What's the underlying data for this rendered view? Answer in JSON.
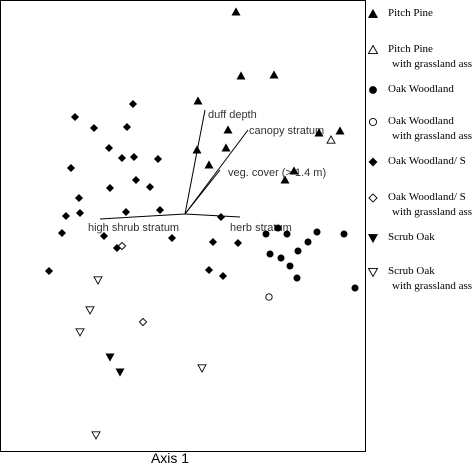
{
  "chart_data": {
    "type": "scatter",
    "title": "",
    "xlabel": "Axis 1",
    "ylabel": "",
    "grid": false,
    "legend_placement": "right",
    "series": [
      {
        "name": "Pitch Pine",
        "marker": "triangle-up",
        "filled": true,
        "points": [
          [
            236,
            12
          ],
          [
            198,
            101
          ],
          [
            241,
            76
          ],
          [
            274,
            75
          ],
          [
            228,
            130
          ],
          [
            319,
            133
          ],
          [
            340,
            131
          ],
          [
            197,
            150
          ],
          [
            209,
            165
          ],
          [
            285,
            180
          ],
          [
            294,
            171
          ],
          [
            226,
            148
          ]
        ]
      },
      {
        "name": "Pitch Pine with grassland ass",
        "marker": "triangle-up",
        "filled": false,
        "points": [
          [
            331,
            140
          ]
        ]
      },
      {
        "name": "Oak Woodland",
        "marker": "circle",
        "filled": true,
        "points": [
          [
            266,
            234
          ],
          [
            278,
            228
          ],
          [
            287,
            234
          ],
          [
            298,
            251
          ],
          [
            317,
            232
          ],
          [
            344,
            234
          ],
          [
            270,
            254
          ],
          [
            281,
            258
          ],
          [
            290,
            266
          ],
          [
            297,
            278
          ],
          [
            355,
            288
          ],
          [
            308,
            242
          ]
        ]
      },
      {
        "name": "Oak Woodland with grassland ass",
        "marker": "circle",
        "filled": false,
        "points": [
          [
            269,
            297
          ]
        ]
      },
      {
        "name": "Oak Woodland/ S",
        "marker": "diamond",
        "filled": true,
        "points": [
          [
            75,
            117
          ],
          [
            94,
            128
          ],
          [
            133,
            104
          ],
          [
            127,
            127
          ],
          [
            109,
            148
          ],
          [
            122,
            158
          ],
          [
            134,
            157
          ],
          [
            71,
            168
          ],
          [
            79,
            198
          ],
          [
            66,
            216
          ],
          [
            80,
            213
          ],
          [
            110,
            188
          ],
          [
            136,
            180
          ],
          [
            158,
            159
          ],
          [
            150,
            187
          ],
          [
            160,
            210
          ],
          [
            126,
            212
          ],
          [
            62,
            233
          ],
          [
            104,
            236
          ],
          [
            117,
            248
          ],
          [
            221,
            217
          ],
          [
            213,
            242
          ],
          [
            223,
            276
          ],
          [
            238,
            243
          ],
          [
            209,
            270
          ],
          [
            49,
            271
          ],
          [
            172,
            238
          ]
        ]
      },
      {
        "name": "Oak Woodland/ S with grassland ass",
        "marker": "diamond",
        "filled": false,
        "points": [
          [
            122,
            246
          ],
          [
            143,
            322
          ]
        ]
      },
      {
        "name": "Scrub Oak",
        "marker": "triangle-down",
        "filled": true,
        "points": [
          [
            110,
            357
          ],
          [
            120,
            372
          ]
        ]
      },
      {
        "name": "Scrub Oak with grassland ass",
        "marker": "triangle-down",
        "filled": false,
        "points": [
          [
            98,
            280
          ],
          [
            90,
            310
          ],
          [
            80,
            332
          ],
          [
            202,
            368
          ],
          [
            96,
            435
          ]
        ]
      }
    ],
    "vectors": [
      {
        "label": "duff depth",
        "end": [
          205,
          110
        ]
      },
      {
        "label": "canopy stratum",
        "end": [
          248,
          130
        ]
      },
      {
        "label": "veg. cover (> 1.4 m)",
        "end": [
          220,
          170
        ]
      },
      {
        "label": "herb stratum",
        "end": [
          240,
          217
        ]
      },
      {
        "label": "high shrub stratum",
        "end": [
          100,
          219
        ]
      }
    ],
    "vector_origin": [
      185,
      214
    ],
    "xlim": [
      0,
      366
    ],
    "ylim": [
      0,
      452
    ]
  },
  "legend": {
    "items": [
      {
        "marker": "triangle-up",
        "filled": true,
        "label": "Pitch Pine",
        "sub": ""
      },
      {
        "marker": "triangle-up",
        "filled": false,
        "label": "Pitch Pine",
        "sub": "with grassland ass"
      },
      {
        "marker": "circle",
        "filled": true,
        "label": "Oak Woodland",
        "sub": ""
      },
      {
        "marker": "circle",
        "filled": false,
        "label": "Oak Woodland",
        "sub": "with grassland ass"
      },
      {
        "marker": "diamond",
        "filled": true,
        "label": "Oak Woodland/ S",
        "sub": ""
      },
      {
        "marker": "diamond",
        "filled": false,
        "label": "Oak Woodland/ S",
        "sub": "with grassland ass"
      },
      {
        "marker": "triangle-down",
        "filled": true,
        "label": "Scrub Oak",
        "sub": ""
      },
      {
        "marker": "triangle-down",
        "filled": false,
        "label": "Scrub Oak",
        "sub": "with grassland ass"
      }
    ]
  }
}
